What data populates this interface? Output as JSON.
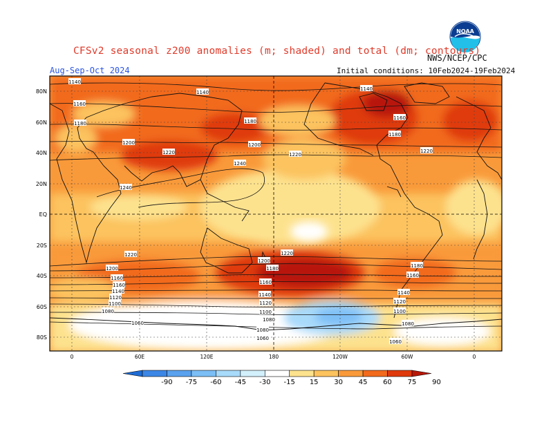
{
  "header": {
    "title": "CFSv2 seasonal z200 anomalies (m; shaded) and total (dm; contours)",
    "agency": "NWS/NCEP/CPC",
    "season": "Aug-Sep-Oct 2024",
    "initial_conditions": "Initial conditions: 10Feb2024-19Feb2024",
    "logo_text": "NOAA"
  },
  "map": {
    "lat_labels": [
      "80N",
      "60N",
      "40N",
      "20N",
      "EQ",
      "20S",
      "40S",
      "60S",
      "80S"
    ],
    "lon_labels": [
      "0",
      "60E",
      "120E",
      "180",
      "120W",
      "60W",
      "0"
    ],
    "contour_labels": [
      "1140",
      "1140",
      "1140",
      "1160",
      "1160",
      "1180",
      "1180",
      "1180",
      "1200",
      "1200",
      "1220",
      "1220",
      "1220",
      "1240",
      "1240",
      "1220",
      "1220",
      "1200",
      "1200",
      "1180",
      "1180",
      "1160",
      "1160",
      "1160",
      "1160",
      "1140",
      "1140",
      "1140",
      "1120",
      "1120",
      "1120",
      "1100",
      "1100",
      "1100",
      "1080",
      "1080",
      "1080",
      "1080",
      "1060",
      "1060",
      "1060"
    ]
  },
  "colorbar": {
    "labels": [
      "-90",
      "-75",
      "-60",
      "-45",
      "-30",
      "-15",
      "15",
      "30",
      "45",
      "60",
      "75",
      "90"
    ],
    "colors": [
      "#1e6cd4",
      "#3c87e6",
      "#5aa2ee",
      "#7cbef6",
      "#a8dafa",
      "#d2f0fc",
      "#ffffff",
      "#fde28e",
      "#fcc35e",
      "#f99a3a",
      "#f26a1c",
      "#df3a0c",
      "#b81808"
    ]
  }
}
